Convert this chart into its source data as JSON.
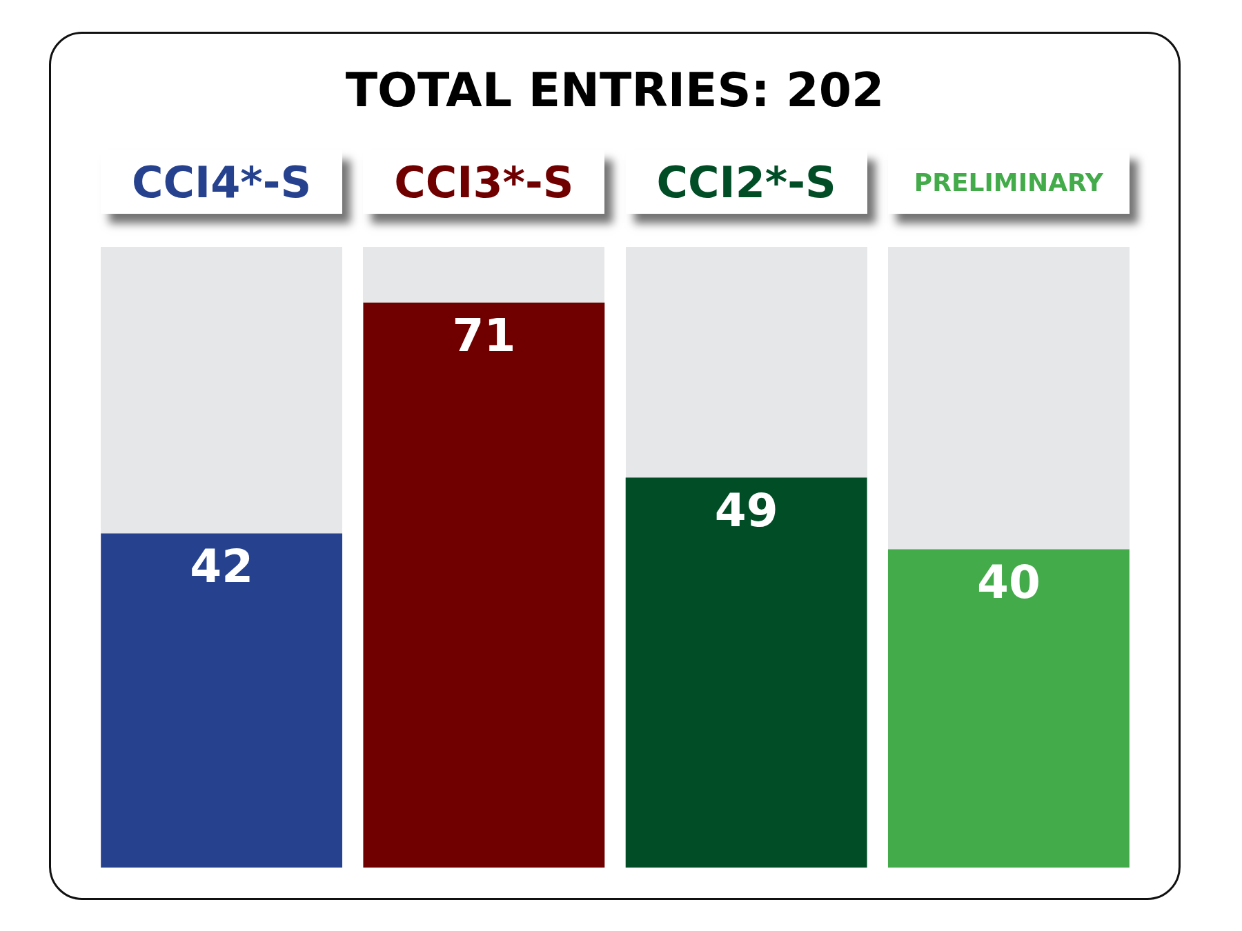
{
  "chart_data": {
    "type": "bar",
    "title": "TOTAL ENTRIES: 202",
    "categories": [
      "CCI4*-S",
      "CCI3*-S",
      "CCI2*-S",
      "PRELIMINARY"
    ],
    "values": [
      42,
      71,
      49,
      40
    ],
    "colors": [
      "#26428f",
      "#700000",
      "#004d26",
      "#43ab4a"
    ],
    "ylim": [
      0,
      78
    ],
    "data_labels": true,
    "tick_labels": "x"
  }
}
